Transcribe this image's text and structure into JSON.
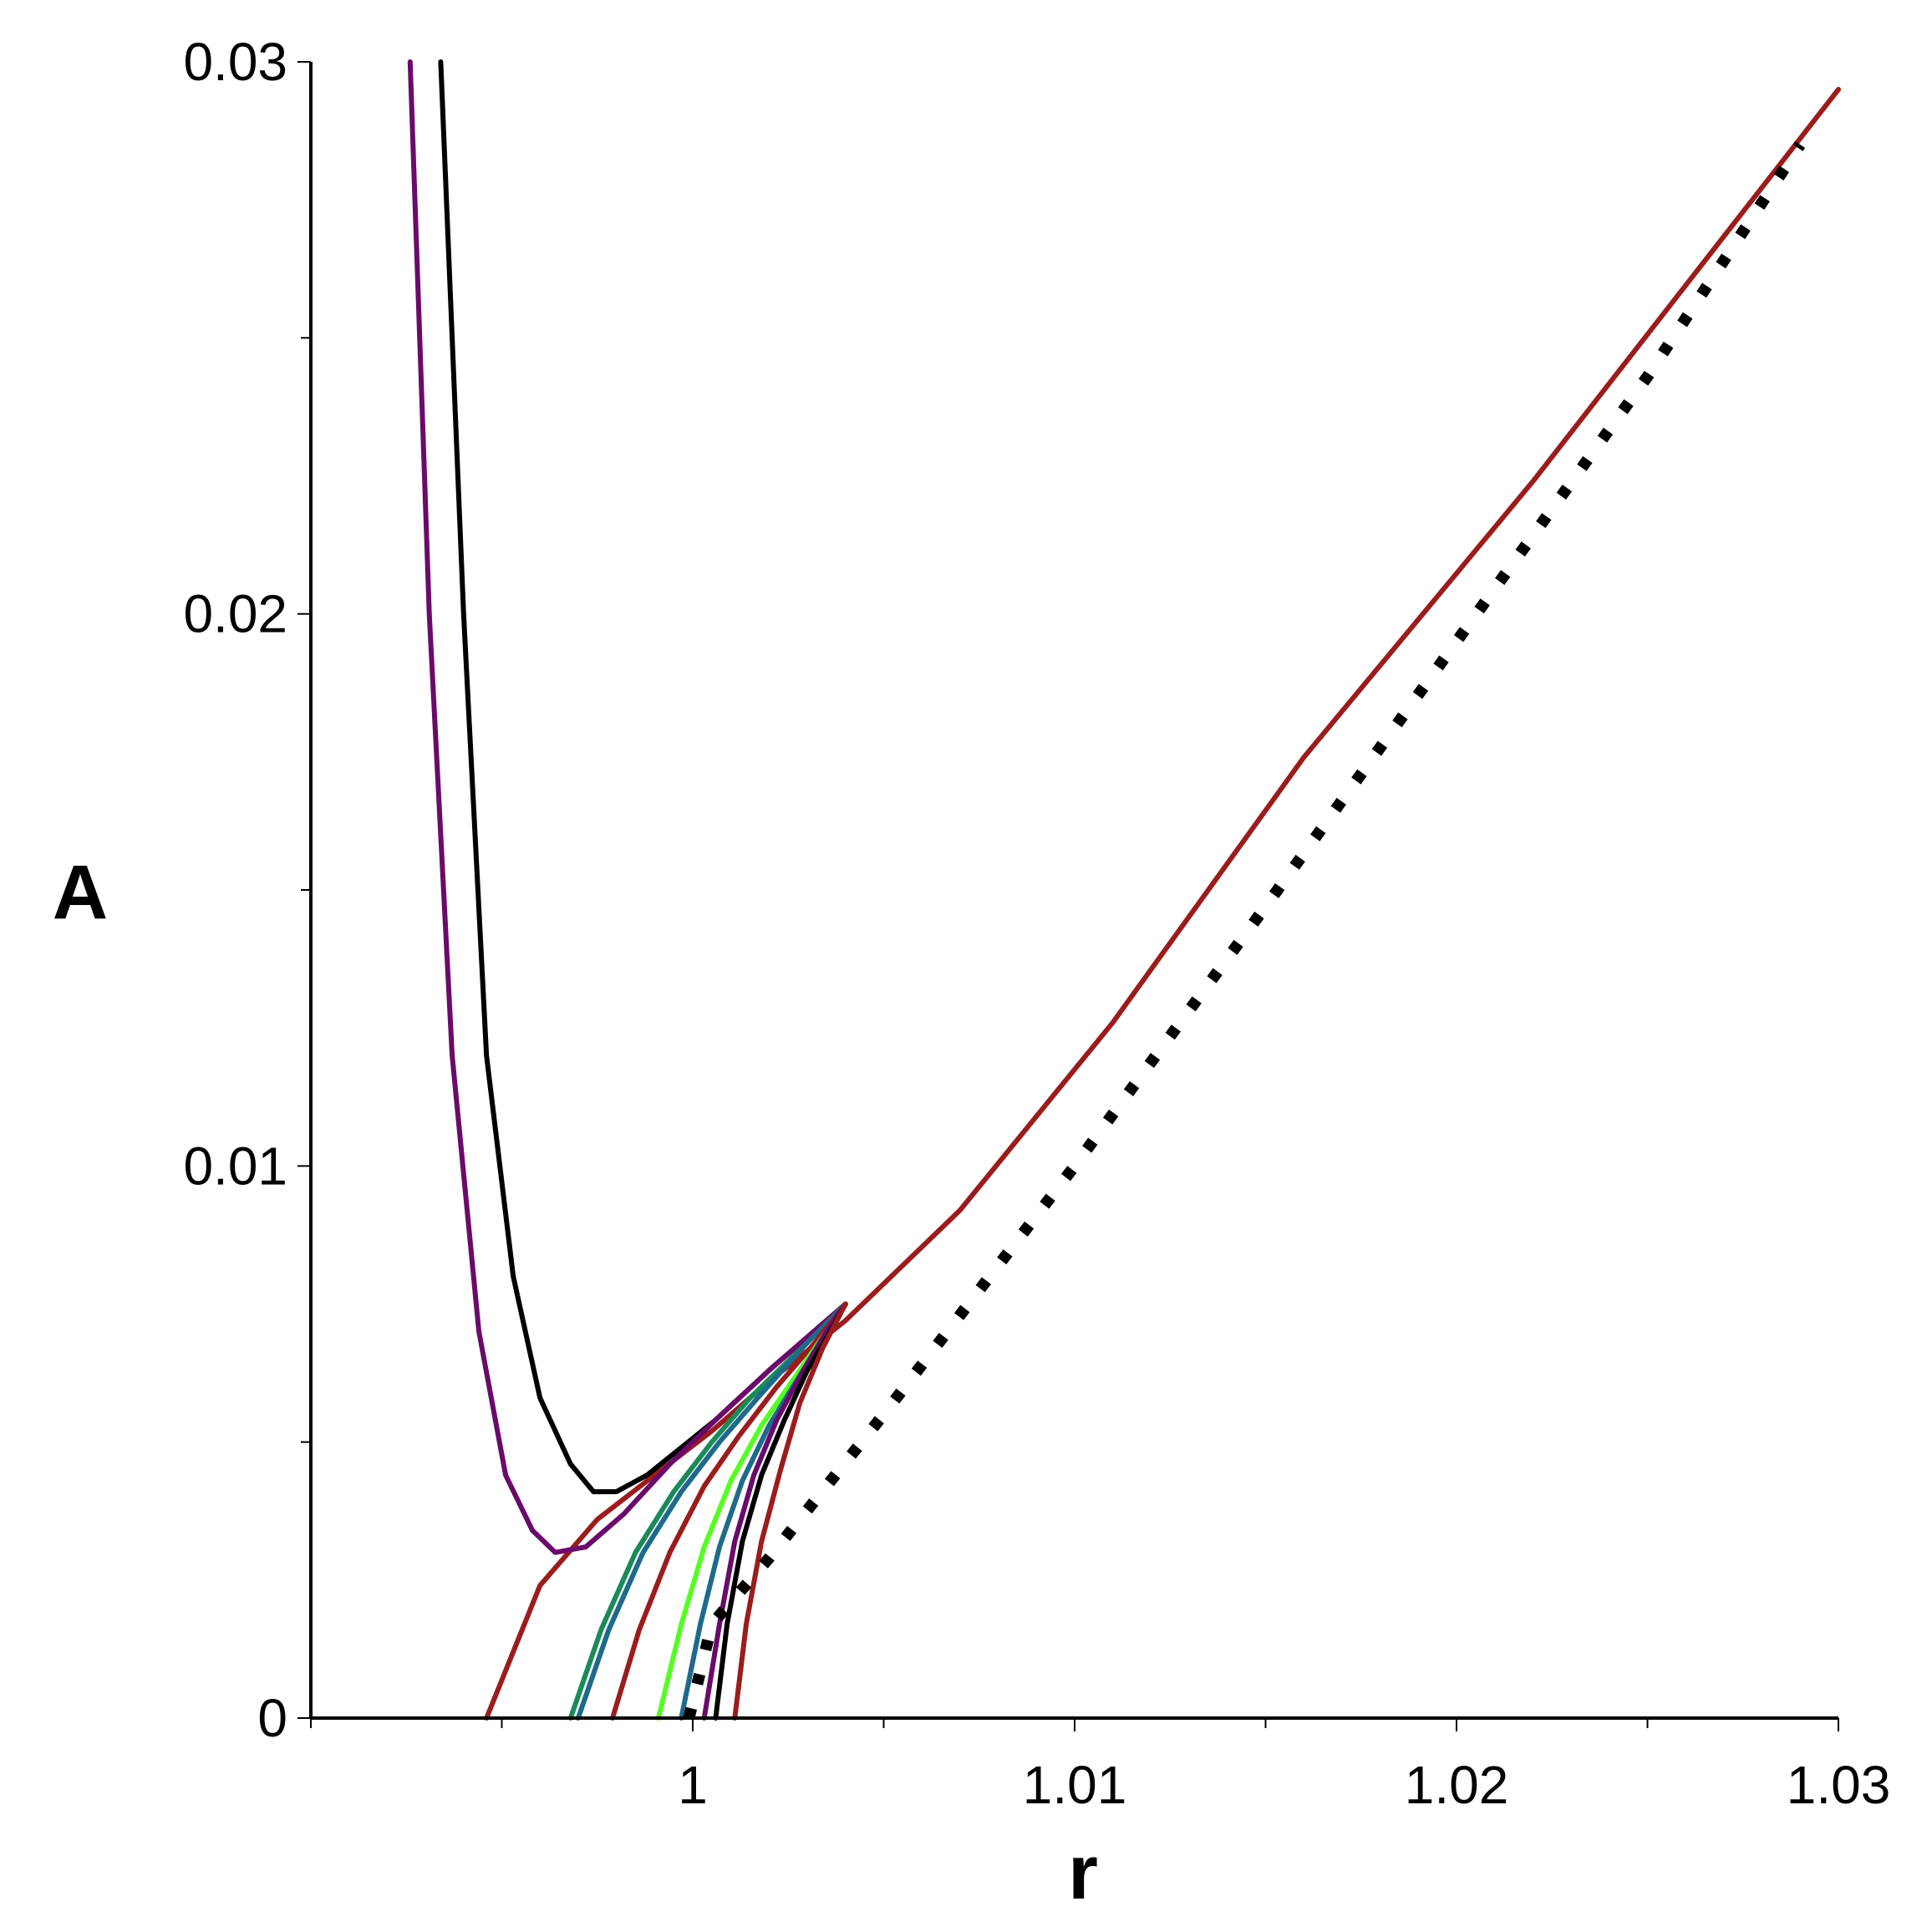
{
  "chart_data": {
    "type": "line",
    "title": "",
    "xlabel": "r",
    "ylabel": "A",
    "xlim": [
      0.99,
      1.03
    ],
    "ylim": [
      0,
      0.03
    ],
    "x_ticks": [
      1,
      1.01,
      1.02,
      1.03
    ],
    "x_tick_labels": [
      "1",
      "1.01",
      "1.02",
      "1.03"
    ],
    "y_ticks": [
      0,
      0.01,
      0.02,
      0.03
    ],
    "y_tick_labels": [
      "0",
      "0.01",
      "0.02",
      "0.03"
    ],
    "x_minor_ticks": [
      0.99,
      0.995,
      1.005,
      1.015,
      1.025
    ],
    "y_minor_ticks": [
      0.005,
      0.015,
      0.025
    ],
    "grid": false,
    "legend": "none",
    "series": [
      {
        "color": "#9b1c1c",
        "style": "solid",
        "x": [
          0.9946,
          0.996,
          0.9975,
          0.999,
          1.0005,
          1.002,
          1.004,
          1.007,
          1.011,
          1.016,
          1.022,
          1.03
        ],
        "y": [
          0.0,
          0.0024,
          0.0036,
          0.0044,
          0.0052,
          0.0061,
          0.0072,
          0.0092,
          0.0126,
          0.0174,
          0.0224,
          0.0295
        ]
      },
      {
        "color": "#000000",
        "style": "solid",
        "x": [
          0.9934,
          0.994,
          0.9946,
          0.9953,
          0.996,
          0.9968,
          0.9974,
          0.998,
          0.9988,
          0.9997,
          1.0006,
          1.002,
          1.004
        ],
        "y": [
          0.03,
          0.02,
          0.012,
          0.008,
          0.0058,
          0.0046,
          0.0041,
          0.0041,
          0.0044,
          0.0049,
          0.0054,
          0.0063,
          0.0075
        ]
      },
      {
        "color": "#6a0a6a",
        "style": "solid",
        "x": [
          0.9926,
          0.9931,
          0.9937,
          0.9944,
          0.9951,
          0.9958,
          0.9964,
          0.9972,
          0.9982,
          0.9994,
          1.0006,
          1.002,
          1.004
        ],
        "y": [
          0.03,
          0.02,
          0.012,
          0.007,
          0.0044,
          0.0034,
          0.003,
          0.0031,
          0.0037,
          0.0046,
          0.0054,
          0.0063,
          0.0075
        ]
      },
      {
        "color": "#1a8a5a",
        "style": "solid",
        "x": [
          0.9968,
          0.9976,
          0.9985,
          0.9995,
          1.0005,
          1.0015,
          1.003,
          1.004
        ],
        "y": [
          0.0,
          0.0016,
          0.003,
          0.0041,
          0.005,
          0.0058,
          0.0068,
          0.0075
        ]
      },
      {
        "color": "#1e6a8a",
        "style": "solid",
        "x": [
          0.997,
          0.9978,
          0.9987,
          0.9997,
          1.0007,
          1.0017,
          1.003,
          1.004
        ],
        "y": [
          0.0,
          0.0016,
          0.003,
          0.0041,
          0.005,
          0.0058,
          0.0068,
          0.0075
        ]
      },
      {
        "color": "#9b1c1c",
        "style": "solid",
        "x": [
          0.9979,
          0.9986,
          0.9994,
          1.0003,
          1.0012,
          1.0022,
          1.0032,
          1.004
        ],
        "y": [
          0.0,
          0.0016,
          0.003,
          0.0042,
          0.0051,
          0.006,
          0.0068,
          0.0075
        ]
      },
      {
        "color": "#55ff22",
        "style": "solid",
        "x": [
          0.9991,
          0.9997,
          1.0003,
          1.001,
          1.0018,
          1.0027,
          1.0035,
          1.004
        ],
        "y": [
          0.0,
          0.0017,
          0.0031,
          0.0043,
          0.0053,
          0.0062,
          0.007,
          0.0075
        ]
      },
      {
        "color": "#1e6a8a",
        "style": "solid",
        "x": [
          0.9997,
          1.0002,
          1.0007,
          1.0013,
          1.002,
          1.0028,
          1.0035,
          1.004
        ],
        "y": [
          0.0,
          0.0017,
          0.0031,
          0.0043,
          0.0053,
          0.0062,
          0.007,
          0.0075
        ]
      },
      {
        "color": "#6a0a6a",
        "style": "solid",
        "x": [
          1.0003,
          1.0007,
          1.0011,
          1.0016,
          1.0022,
          1.0029,
          1.0035,
          1.004
        ],
        "y": [
          0.0,
          0.0017,
          0.0032,
          0.0044,
          0.0054,
          0.0063,
          0.007,
          0.0075
        ]
      },
      {
        "color": "#000000",
        "style": "solid",
        "x": [
          1.0006,
          1.0009,
          1.0013,
          1.0018,
          1.0024,
          1.003,
          1.0036,
          1.004
        ],
        "y": [
          0.0,
          0.0017,
          0.0032,
          0.0044,
          0.0054,
          0.0063,
          0.007,
          0.0075
        ]
      },
      {
        "color": "#9b1c1c",
        "style": "solid",
        "x": [
          1.0011,
          1.0014,
          1.0018,
          1.0023,
          1.0028,
          1.0034,
          1.004
        ],
        "y": [
          0.0,
          0.0017,
          0.0032,
          0.0045,
          0.0057,
          0.0067,
          0.0075
        ]
      },
      {
        "color": "#000000",
        "style": "dotted",
        "x": [
          0.9999,
          1.0005,
          1.002,
          1.005,
          1.01,
          1.015,
          1.02,
          1.025,
          1.029
        ],
        "y": [
          0.0,
          0.0017,
          0.0029,
          0.0055,
          0.01,
          0.0147,
          0.0195,
          0.0243,
          0.0285
        ]
      }
    ]
  }
}
